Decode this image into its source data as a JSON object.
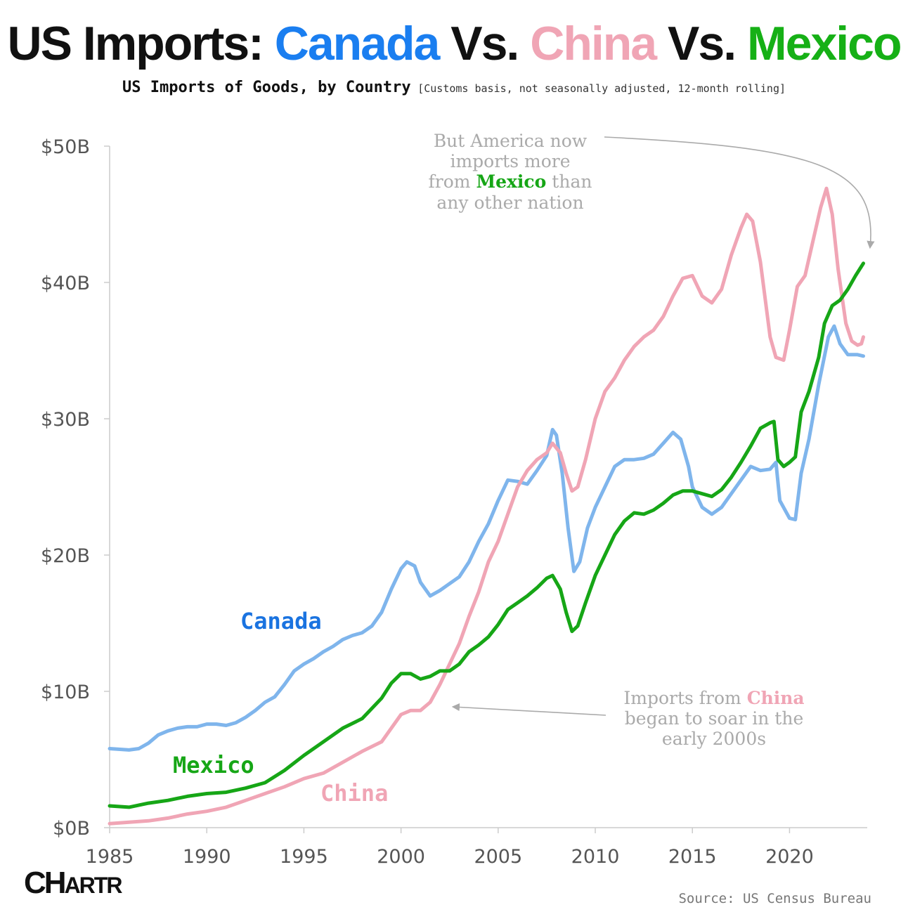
{
  "header": {
    "title_prefix": "US Imports: ",
    "title_canada": "Canada",
    "title_vs1": " Vs. ",
    "title_china": "China",
    "title_vs2": " Vs. ",
    "title_mexico": "Mexico",
    "subtitle_main": "US Imports of Goods, by Country",
    "subtitle_note": "[Customs basis, not seasonally adjusted, 12-month rolling]"
  },
  "footer": {
    "logo": "CHARTR",
    "source": "Source: US Census Bureau"
  },
  "colors": {
    "canada": "#7fb5ec",
    "canada_label": "#1a73e0",
    "china": "#f0a5b5",
    "mexico": "#16a616",
    "annotation": "#aaaaaa",
    "axis_text": "#555555"
  },
  "annotations": {
    "mexico": {
      "lines": [
        "But America now",
        "imports more",
        "from",
        "Mexico",
        "than",
        "any other nation"
      ]
    },
    "china": {
      "lines": [
        "Imports from",
        "China",
        "began to soar in the",
        "early 2000s"
      ]
    }
  },
  "chart_data": {
    "type": "line",
    "title": "US Imports: Canada Vs. China Vs. Mexico",
    "subtitle": "US Imports of Goods, by Country [Customs basis, not seasonally adjusted, 12-month rolling]",
    "xlabel": "",
    "ylabel": "",
    "xlim": [
      1985,
      2024
    ],
    "ylim": [
      0,
      50
    ],
    "x_ticks": [
      1985,
      1990,
      1995,
      2000,
      2005,
      2010,
      2015,
      2020
    ],
    "x_tick_labels": [
      "1985",
      "1990",
      "1995",
      "2000",
      "2005",
      "2010",
      "2015",
      "2020"
    ],
    "y_ticks": [
      0,
      10,
      20,
      30,
      40,
      50
    ],
    "y_tick_labels": [
      "$0B",
      "$10B",
      "$20B",
      "$30B",
      "$40B",
      "$50B"
    ],
    "grid": false,
    "legend": "inline labels",
    "series": [
      {
        "name": "Canada",
        "color": "#7fb5ec",
        "points": [
          [
            1985,
            5.8
          ],
          [
            1986,
            5.7
          ],
          [
            1986.5,
            5.8
          ],
          [
            1987,
            6.2
          ],
          [
            1987.5,
            6.8
          ],
          [
            1988,
            7.1
          ],
          [
            1988.5,
            7.3
          ],
          [
            1989,
            7.4
          ],
          [
            1989.5,
            7.4
          ],
          [
            1990,
            7.6
          ],
          [
            1990.5,
            7.6
          ],
          [
            1991,
            7.5
          ],
          [
            1991.5,
            7.7
          ],
          [
            1992,
            8.1
          ],
          [
            1992.5,
            8.6
          ],
          [
            1993,
            9.2
          ],
          [
            1993.5,
            9.6
          ],
          [
            1994,
            10.5
          ],
          [
            1994.5,
            11.5
          ],
          [
            1995,
            12.0
          ],
          [
            1995.5,
            12.4
          ],
          [
            1996,
            12.9
          ],
          [
            1996.5,
            13.3
          ],
          [
            1997,
            13.8
          ],
          [
            1997.5,
            14.1
          ],
          [
            1998,
            14.3
          ],
          [
            1998.5,
            14.8
          ],
          [
            1999,
            15.8
          ],
          [
            1999.5,
            17.5
          ],
          [
            2000,
            19.0
          ],
          [
            2000.3,
            19.5
          ],
          [
            2000.7,
            19.2
          ],
          [
            2001,
            18.0
          ],
          [
            2001.5,
            17.0
          ],
          [
            2002,
            17.4
          ],
          [
            2002.5,
            17.9
          ],
          [
            2003,
            18.4
          ],
          [
            2003.5,
            19.5
          ],
          [
            2004,
            21.0
          ],
          [
            2004.5,
            22.3
          ],
          [
            2005,
            24.0
          ],
          [
            2005.5,
            25.5
          ],
          [
            2006,
            25.4
          ],
          [
            2006.5,
            25.2
          ],
          [
            2007,
            26.2
          ],
          [
            2007.5,
            27.3
          ],
          [
            2007.8,
            29.2
          ],
          [
            2008,
            28.8
          ],
          [
            2008.3,
            26.0
          ],
          [
            2008.6,
            22.0
          ],
          [
            2008.9,
            18.8
          ],
          [
            2009.2,
            19.5
          ],
          [
            2009.6,
            22.0
          ],
          [
            2010,
            23.5
          ],
          [
            2010.5,
            25.0
          ],
          [
            2011,
            26.5
          ],
          [
            2011.5,
            27.0
          ],
          [
            2012,
            27.0
          ],
          [
            2012.5,
            27.1
          ],
          [
            2013,
            27.4
          ],
          [
            2013.5,
            28.2
          ],
          [
            2014,
            29.0
          ],
          [
            2014.4,
            28.5
          ],
          [
            2014.8,
            26.5
          ],
          [
            2015,
            25.0
          ],
          [
            2015.5,
            23.5
          ],
          [
            2016,
            23.0
          ],
          [
            2016.5,
            23.5
          ],
          [
            2017,
            24.5
          ],
          [
            2017.5,
            25.5
          ],
          [
            2018,
            26.5
          ],
          [
            2018.5,
            26.2
          ],
          [
            2019,
            26.3
          ],
          [
            2019.3,
            26.8
          ],
          [
            2019.5,
            24.0
          ],
          [
            2020,
            22.7
          ],
          [
            2020.3,
            22.6
          ],
          [
            2020.6,
            26.0
          ],
          [
            2021,
            28.5
          ],
          [
            2021.5,
            32.5
          ],
          [
            2022,
            36.0
          ],
          [
            2022.3,
            36.8
          ],
          [
            2022.6,
            35.5
          ],
          [
            2023,
            34.7
          ],
          [
            2023.5,
            34.7
          ],
          [
            2023.8,
            34.6
          ]
        ]
      },
      {
        "name": "China",
        "color": "#f0a5b5",
        "points": [
          [
            1985,
            0.3
          ],
          [
            1986,
            0.4
          ],
          [
            1987,
            0.5
          ],
          [
            1988,
            0.7
          ],
          [
            1989,
            1.0
          ],
          [
            1990,
            1.2
          ],
          [
            1991,
            1.5
          ],
          [
            1992,
            2.0
          ],
          [
            1993,
            2.5
          ],
          [
            1994,
            3.0
          ],
          [
            1995,
            3.6
          ],
          [
            1996,
            4.0
          ],
          [
            1997,
            4.8
          ],
          [
            1998,
            5.6
          ],
          [
            1999,
            6.3
          ],
          [
            2000,
            8.3
          ],
          [
            2000.5,
            8.6
          ],
          [
            2001,
            8.6
          ],
          [
            2001.5,
            9.2
          ],
          [
            2002,
            10.5
          ],
          [
            2002.5,
            12.0
          ],
          [
            2003,
            13.5
          ],
          [
            2003.5,
            15.5
          ],
          [
            2004,
            17.3
          ],
          [
            2004.5,
            19.5
          ],
          [
            2005,
            21.0
          ],
          [
            2005.5,
            23.0
          ],
          [
            2006,
            25.0
          ],
          [
            2006.5,
            26.2
          ],
          [
            2007,
            27.0
          ],
          [
            2007.5,
            27.5
          ],
          [
            2007.8,
            28.2
          ],
          [
            2008.2,
            27.5
          ],
          [
            2008.5,
            26.0
          ],
          [
            2008.8,
            24.7
          ],
          [
            2009.1,
            25.0
          ],
          [
            2009.5,
            27.0
          ],
          [
            2010,
            30.0
          ],
          [
            2010.5,
            32.0
          ],
          [
            2011,
            33.0
          ],
          [
            2011.5,
            34.3
          ],
          [
            2012,
            35.3
          ],
          [
            2012.5,
            36.0
          ],
          [
            2013,
            36.5
          ],
          [
            2013.5,
            37.5
          ],
          [
            2014,
            39.0
          ],
          [
            2014.5,
            40.3
          ],
          [
            2015,
            40.5
          ],
          [
            2015.5,
            39.0
          ],
          [
            2016,
            38.5
          ],
          [
            2016.5,
            39.5
          ],
          [
            2017,
            42.0
          ],
          [
            2017.5,
            44.0
          ],
          [
            2017.8,
            45.0
          ],
          [
            2018.1,
            44.5
          ],
          [
            2018.5,
            41.5
          ],
          [
            2019,
            36.0
          ],
          [
            2019.3,
            34.5
          ],
          [
            2019.7,
            34.3
          ],
          [
            2020,
            36.5
          ],
          [
            2020.4,
            39.7
          ],
          [
            2020.8,
            40.5
          ],
          [
            2021.2,
            43.0
          ],
          [
            2021.6,
            45.5
          ],
          [
            2021.9,
            46.9
          ],
          [
            2022.2,
            45.0
          ],
          [
            2022.5,
            41.0
          ],
          [
            2022.9,
            37.0
          ],
          [
            2023.2,
            35.7
          ],
          [
            2023.5,
            35.4
          ],
          [
            2023.7,
            35.5
          ],
          [
            2023.8,
            36.0
          ]
        ]
      },
      {
        "name": "Mexico",
        "color": "#16a616",
        "points": [
          [
            1985,
            1.6
          ],
          [
            1986,
            1.5
          ],
          [
            1987,
            1.8
          ],
          [
            1988,
            2.0
          ],
          [
            1989,
            2.3
          ],
          [
            1990,
            2.5
          ],
          [
            1991,
            2.6
          ],
          [
            1992,
            2.9
          ],
          [
            1993,
            3.3
          ],
          [
            1994,
            4.2
          ],
          [
            1995,
            5.3
          ],
          [
            1996,
            6.3
          ],
          [
            1997,
            7.3
          ],
          [
            1998,
            8.0
          ],
          [
            1999,
            9.5
          ],
          [
            1999.5,
            10.6
          ],
          [
            2000,
            11.3
          ],
          [
            2000.5,
            11.3
          ],
          [
            2001,
            10.9
          ],
          [
            2001.5,
            11.1
          ],
          [
            2002,
            11.5
          ],
          [
            2002.5,
            11.5
          ],
          [
            2003,
            12.0
          ],
          [
            2003.5,
            12.9
          ],
          [
            2004,
            13.4
          ],
          [
            2004.5,
            14.0
          ],
          [
            2005,
            14.9
          ],
          [
            2005.5,
            16.0
          ],
          [
            2006,
            16.5
          ],
          [
            2006.5,
            17.0
          ],
          [
            2007,
            17.6
          ],
          [
            2007.5,
            18.3
          ],
          [
            2007.8,
            18.5
          ],
          [
            2008.2,
            17.5
          ],
          [
            2008.5,
            15.8
          ],
          [
            2008.8,
            14.4
          ],
          [
            2009.1,
            14.8
          ],
          [
            2009.5,
            16.5
          ],
          [
            2010,
            18.5
          ],
          [
            2010.5,
            20.0
          ],
          [
            2011,
            21.5
          ],
          [
            2011.5,
            22.5
          ],
          [
            2012,
            23.1
          ],
          [
            2012.5,
            23.0
          ],
          [
            2013,
            23.3
          ],
          [
            2013.5,
            23.8
          ],
          [
            2014,
            24.4
          ],
          [
            2014.5,
            24.7
          ],
          [
            2015,
            24.7
          ],
          [
            2015.5,
            24.5
          ],
          [
            2016,
            24.3
          ],
          [
            2016.5,
            24.8
          ],
          [
            2017,
            25.7
          ],
          [
            2017.5,
            26.8
          ],
          [
            2018,
            28.0
          ],
          [
            2018.5,
            29.3
          ],
          [
            2019,
            29.7
          ],
          [
            2019.2,
            29.8
          ],
          [
            2019.4,
            27.0
          ],
          [
            2019.7,
            26.5
          ],
          [
            2020,
            26.8
          ],
          [
            2020.3,
            27.2
          ],
          [
            2020.6,
            30.5
          ],
          [
            2021,
            32.0
          ],
          [
            2021.5,
            34.5
          ],
          [
            2021.8,
            37.0
          ],
          [
            2022.2,
            38.3
          ],
          [
            2022.6,
            38.7
          ],
          [
            2023,
            39.5
          ],
          [
            2023.4,
            40.5
          ],
          [
            2023.8,
            41.4
          ]
        ]
      }
    ],
    "series_labels": [
      "Canada",
      "Mexico",
      "China"
    ]
  }
}
